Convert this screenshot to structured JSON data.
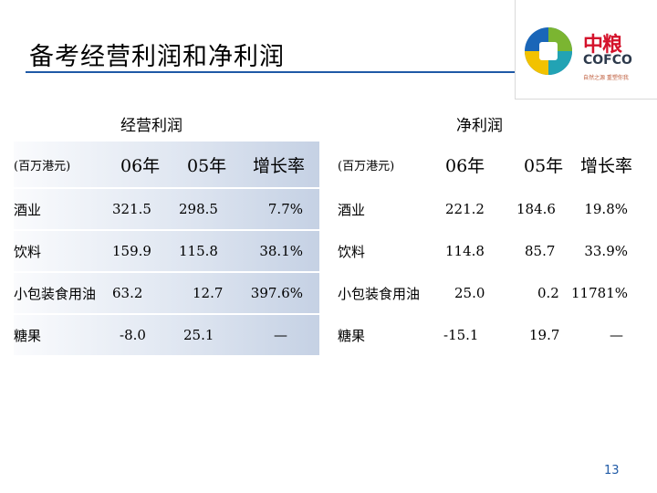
{
  "title": "备考经营利润和净利润",
  "logo": {
    "brand_cn": "中粮",
    "brand_en": "COFCO",
    "slogan": "自然之源 重塑你我",
    "colors": {
      "red": "#d4122b",
      "blue": "#1a66b8",
      "green": "#7bb531",
      "teal": "#22a3b4",
      "yellow": "#f2c200"
    }
  },
  "left_table": {
    "heading": "经营利润",
    "unit": "(百万港元)",
    "columns": [
      "06年",
      "05年",
      "增长率"
    ],
    "rows": [
      {
        "label": "酒业",
        "v06": "321.5",
        "v05": "298.5",
        "growth": "7.7%"
      },
      {
        "label": "饮料",
        "v06": "159.9",
        "v05": "115.8",
        "growth": "38.1%"
      },
      {
        "label": "小包装食用油",
        "v06": "63.2",
        "v05": "12.7",
        "growth": "397.6%"
      },
      {
        "label": "糖果",
        "v06": "-8.0",
        "v05": "25.1",
        "growth": "—"
      }
    ]
  },
  "right_table": {
    "heading": "净利润",
    "unit": "(百万港元)",
    "columns": [
      "06年",
      "05年",
      "增长率"
    ],
    "rows": [
      {
        "label": "酒业",
        "v06": "221.2",
        "v05": "184.6",
        "growth": "19.8%"
      },
      {
        "label": "饮料",
        "v06": "114.8",
        "v05": "85.7",
        "growth": "33.9%"
      },
      {
        "label": "小包装食用油",
        "v06": "25.0",
        "v05": "0.2",
        "growth": "11781%"
      },
      {
        "label": "糖果",
        "v06": "-15.1",
        "v05": "19.7",
        "growth": "—"
      }
    ]
  },
  "page_number": "13"
}
